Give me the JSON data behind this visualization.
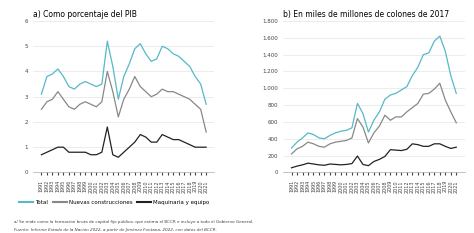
{
  "title_a": "a) Como porcentaje del PIB",
  "title_b": "b) En miles de millones de colones de 2017",
  "footnote1": "a/ Se mide como la formación bruta de capital fijo pública, que estima el BCCR e incluye a todo el Gobierno General.",
  "footnote2": "Fuente: Informe Estado de la Nación 2022, a partir de Jiménez Fontana, 2022, con datos del BCCR.",
  "years": [
    1991,
    1992,
    1993,
    1994,
    1995,
    1996,
    1997,
    1998,
    1999,
    2000,
    2001,
    2002,
    2003,
    2004,
    2005,
    2006,
    2007,
    2008,
    2009,
    2010,
    2011,
    2012,
    2013,
    2014,
    2015,
    2016,
    2017,
    2018,
    2019,
    2020,
    2021
  ],
  "pib_total": [
    3.1,
    3.8,
    3.9,
    4.1,
    3.8,
    3.4,
    3.3,
    3.5,
    3.6,
    3.5,
    3.4,
    3.5,
    5.2,
    4.2,
    2.9,
    3.8,
    4.3,
    4.9,
    5.1,
    4.7,
    4.4,
    4.5,
    5.0,
    4.9,
    4.7,
    4.6,
    4.4,
    4.2,
    3.8,
    3.5,
    2.7
  ],
  "pib_nuevas": [
    2.5,
    2.8,
    2.9,
    3.2,
    2.9,
    2.6,
    2.5,
    2.7,
    2.8,
    2.7,
    2.6,
    2.8,
    4.0,
    3.2,
    2.2,
    2.9,
    3.3,
    3.8,
    3.4,
    3.2,
    3.0,
    3.1,
    3.3,
    3.2,
    3.2,
    3.1,
    3.0,
    2.9,
    2.7,
    2.5,
    1.6
  ],
  "pib_maquinaria": [
    0.7,
    0.8,
    0.9,
    1.0,
    1.0,
    0.8,
    0.8,
    0.8,
    0.8,
    0.7,
    0.7,
    0.8,
    1.8,
    0.7,
    0.6,
    0.8,
    1.0,
    1.2,
    1.5,
    1.4,
    1.2,
    1.2,
    1.5,
    1.4,
    1.3,
    1.3,
    1.2,
    1.1,
    1.0,
    1.0,
    1.0
  ],
  "mm_total": [
    290,
    360,
    410,
    470,
    450,
    410,
    400,
    440,
    470,
    490,
    500,
    530,
    820,
    700,
    480,
    620,
    720,
    870,
    920,
    940,
    980,
    1020,
    1150,
    1250,
    1400,
    1420,
    1560,
    1620,
    1440,
    1150,
    940
  ],
  "mm_nuevas": [
    220,
    280,
    310,
    360,
    340,
    310,
    300,
    340,
    360,
    370,
    380,
    410,
    640,
    540,
    350,
    470,
    550,
    680,
    620,
    660,
    660,
    720,
    770,
    820,
    930,
    940,
    990,
    1060,
    860,
    720,
    590
  ],
  "mm_maquinaria": [
    55,
    75,
    90,
    110,
    100,
    90,
    85,
    100,
    95,
    90,
    95,
    105,
    195,
    95,
    80,
    130,
    155,
    190,
    270,
    265,
    260,
    275,
    340,
    330,
    310,
    310,
    340,
    340,
    310,
    285,
    300
  ],
  "color_total": "#56b8c8",
  "color_nuevas": "#888888",
  "color_maquinaria": "#222222",
  "legend_labels": [
    "Total",
    "Nuevas construcciones",
    "Maquinaria y equipo"
  ],
  "ylim_pib": [
    0,
    6
  ],
  "yticks_pib": [
    0,
    1,
    2,
    3,
    4,
    5,
    6
  ],
  "ylim_mm": [
    0,
    1800
  ],
  "yticks_mm": [
    0,
    200,
    400,
    600,
    800,
    1000,
    1200,
    1400,
    1600,
    1800
  ]
}
